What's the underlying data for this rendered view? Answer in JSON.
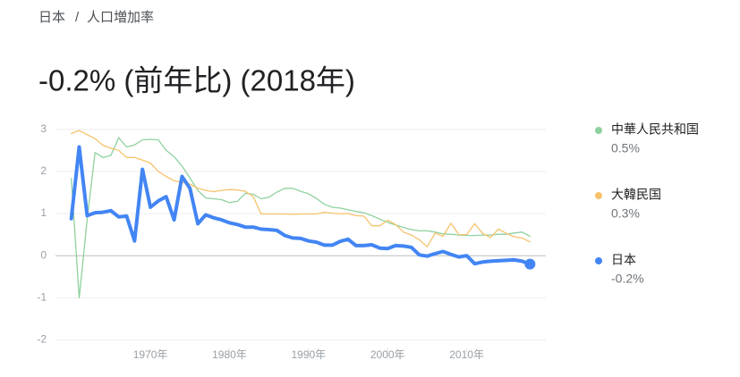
{
  "breadcrumb": [
    "日本",
    "人口増加率"
  ],
  "breadcrumb_separator": "/",
  "chart_data": {
    "type": "line",
    "title": "-0.2% (前年比) (2018年)",
    "x": [
      1960,
      1961,
      1962,
      1963,
      1964,
      1965,
      1966,
      1967,
      1968,
      1969,
      1970,
      1971,
      1972,
      1973,
      1974,
      1975,
      1976,
      1977,
      1978,
      1979,
      1980,
      1981,
      1982,
      1983,
      1984,
      1985,
      1986,
      1987,
      1988,
      1989,
      1990,
      1991,
      1992,
      1993,
      1994,
      1995,
      1996,
      1997,
      1998,
      1999,
      2000,
      2001,
      2002,
      2003,
      2004,
      2005,
      2006,
      2007,
      2008,
      2009,
      2010,
      2011,
      2012,
      2013,
      2014,
      2015,
      2016,
      2017,
      2018
    ],
    "xlim": [
      1958,
      2020
    ],
    "xticks": [
      {
        "value": 1970,
        "label": "1970年"
      },
      {
        "value": 1980,
        "label": "1980年"
      },
      {
        "value": 1990,
        "label": "1990年"
      },
      {
        "value": 2000,
        "label": "2000年"
      },
      {
        "value": 2010,
        "label": "2010年"
      }
    ],
    "ylim": [
      -2.2,
      3.1
    ],
    "yticks": [
      -2,
      -1,
      0,
      1,
      2,
      3
    ],
    "grid": true,
    "series": [
      {
        "name": "中華人民共和国",
        "color": "#8fd19e",
        "legend_value_label": "0.5%",
        "values": [
          1.83,
          -1.0,
          0.85,
          2.45,
          2.33,
          2.38,
          2.8,
          2.58,
          2.63,
          2.75,
          2.76,
          2.75,
          2.5,
          2.35,
          2.13,
          1.84,
          1.55,
          1.37,
          1.35,
          1.33,
          1.26,
          1.29,
          1.48,
          1.46,
          1.35,
          1.39,
          1.51,
          1.6,
          1.6,
          1.53,
          1.47,
          1.36,
          1.22,
          1.15,
          1.13,
          1.09,
          1.05,
          1.02,
          0.95,
          0.87,
          0.79,
          0.73,
          0.67,
          0.62,
          0.59,
          0.59,
          0.56,
          0.52,
          0.51,
          0.49,
          0.48,
          0.48,
          0.49,
          0.49,
          0.51,
          0.51,
          0.54,
          0.56,
          0.46
        ]
      },
      {
        "name": "大韓民国",
        "color": "#f6c26b",
        "legend_value_label": "0.3%",
        "values": [
          2.9,
          2.97,
          2.87,
          2.78,
          2.62,
          2.55,
          2.5,
          2.33,
          2.33,
          2.27,
          2.2,
          2.0,
          1.88,
          1.78,
          1.74,
          1.7,
          1.6,
          1.55,
          1.52,
          1.55,
          1.57,
          1.56,
          1.53,
          1.4,
          0.99,
          0.99,
          0.99,
          0.99,
          0.98,
          0.99,
          0.99,
          0.99,
          1.03,
          1.01,
          1.0,
          1.0,
          0.95,
          0.94,
          0.71,
          0.71,
          0.84,
          0.74,
          0.56,
          0.49,
          0.38,
          0.21,
          0.54,
          0.46,
          0.77,
          0.5,
          0.5,
          0.76,
          0.53,
          0.43,
          0.63,
          0.53,
          0.45,
          0.42,
          0.33
        ]
      },
      {
        "name": "日本",
        "color": "#4285f4",
        "legend_value_label": "-0.2%",
        "emphasized": true,
        "values": [
          0.88,
          2.58,
          0.95,
          1.02,
          1.03,
          1.07,
          0.92,
          0.94,
          0.35,
          2.05,
          1.15,
          1.3,
          1.4,
          0.85,
          1.88,
          1.6,
          0.76,
          0.97,
          0.9,
          0.85,
          0.78,
          0.74,
          0.68,
          0.68,
          0.63,
          0.62,
          0.6,
          0.48,
          0.42,
          0.41,
          0.35,
          0.32,
          0.25,
          0.25,
          0.34,
          0.39,
          0.24,
          0.24,
          0.26,
          0.18,
          0.17,
          0.24,
          0.23,
          0.2,
          0.02,
          -0.01,
          0.05,
          0.1,
          0.03,
          -0.03,
          0.0,
          -0.19,
          -0.15,
          -0.13,
          -0.12,
          -0.11,
          -0.1,
          -0.13,
          -0.2
        ]
      }
    ]
  }
}
